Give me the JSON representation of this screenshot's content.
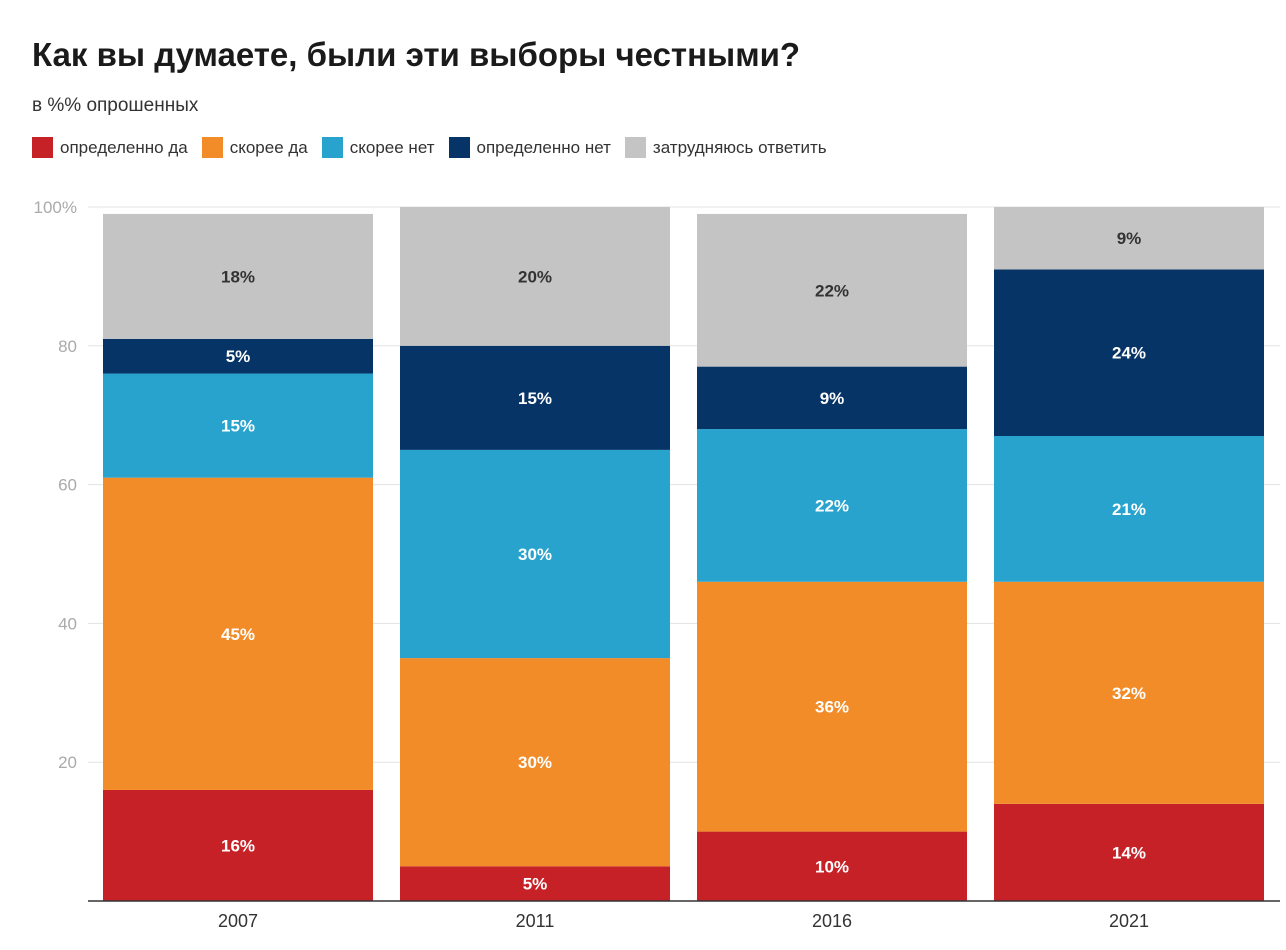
{
  "chart_data": {
    "type": "bar",
    "stacked": true,
    "title": "Как вы думаете, были эти выборы честными?",
    "subtitle": "в %% опрошенных",
    "categories": [
      "2007",
      "2011",
      "2016",
      "2021"
    ],
    "series": [
      {
        "name": "определенно да",
        "color": "#c62127",
        "values": [
          16,
          5,
          10,
          14
        ],
        "labels": [
          "16%",
          "5%",
          "10%",
          "14%"
        ]
      },
      {
        "name": "скорее да",
        "color": "#f28c28",
        "values": [
          45,
          30,
          36,
          32
        ],
        "labels": [
          "45%",
          "30%",
          "36%",
          "32%"
        ]
      },
      {
        "name": "скорее нет",
        "color": "#28a3cd",
        "values": [
          15,
          30,
          22,
          21
        ],
        "labels": [
          "15%",
          "30%",
          "22%",
          "21%"
        ]
      },
      {
        "name": "определенно нет",
        "color": "#063466",
        "values": [
          5,
          15,
          9,
          24
        ],
        "labels": [
          "5%",
          "15%",
          "9%",
          "24%"
        ]
      },
      {
        "name": "затрудняюсь ответить",
        "color": "#c4c4c4",
        "values": [
          18,
          20,
          22,
          9
        ],
        "labels": [
          "18%",
          "20%",
          "22%",
          "9%"
        ]
      }
    ],
    "y_ticks": [
      {
        "value": 20,
        "label": "20"
      },
      {
        "value": 40,
        "label": "40"
      },
      {
        "value": 60,
        "label": "60"
      },
      {
        "value": 80,
        "label": "80"
      },
      {
        "value": 100,
        "label": "100%"
      }
    ],
    "ylim": [
      0,
      100
    ],
    "grid": true,
    "legend_position": "top-left"
  }
}
